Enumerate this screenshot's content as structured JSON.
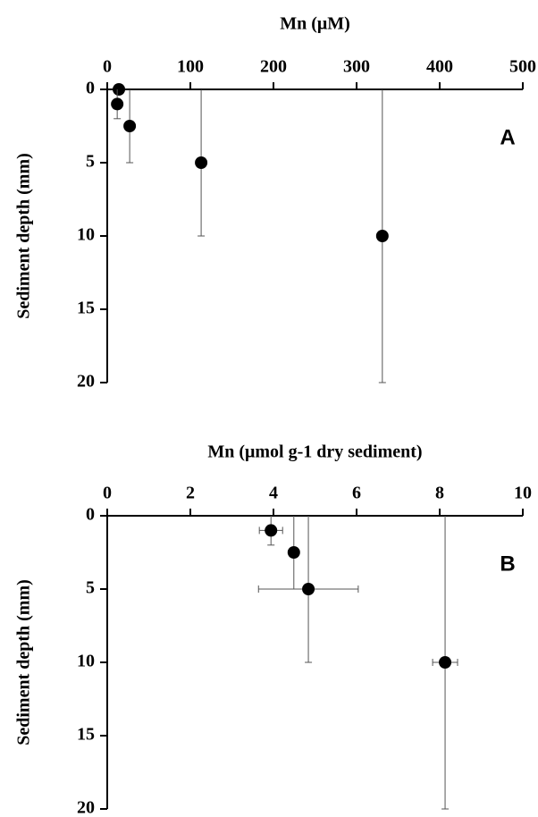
{
  "chart_data": [
    {
      "type": "scatter",
      "title": "Mn (μM)",
      "ylabel": "Sediment depth (mm)",
      "annotation": "A",
      "xlim": [
        0,
        500
      ],
      "xticks": [
        0,
        100,
        200,
        300,
        400,
        500
      ],
      "ylim": [
        0,
        20
      ],
      "yticks": [
        0,
        5,
        10,
        15,
        20
      ],
      "y_inverted": true,
      "x_axis_position": "top",
      "series": [
        {
          "color": "#000000",
          "x": [
            14,
            12,
            27,
            113,
            331
          ],
          "y": [
            0,
            1,
            2.5,
            5,
            10
          ],
          "xerr": [
            null,
            null,
            null,
            null,
            null
          ],
          "yerr": [
            null,
            1,
            2.5,
            5,
            10
          ]
        }
      ]
    },
    {
      "type": "scatter",
      "title": "Mn (μmol g-1 dry sediment)",
      "ylabel": "Sediment depth (mm)",
      "annotation": "B",
      "xlim": [
        0,
        10
      ],
      "xticks": [
        0,
        2,
        4,
        6,
        8,
        10
      ],
      "ylim": [
        0,
        20
      ],
      "yticks": [
        0,
        5,
        10,
        15,
        20
      ],
      "y_inverted": true,
      "x_axis_position": "top",
      "series": [
        {
          "color": "#000000",
          "x": [
            3.94,
            4.49,
            4.84,
            8.13
          ],
          "y": [
            1,
            2.5,
            5,
            10
          ],
          "xerr": [
            0.28,
            null,
            1.2,
            0.3
          ],
          "yerr": [
            1,
            2.5,
            5,
            10
          ]
        }
      ]
    }
  ]
}
